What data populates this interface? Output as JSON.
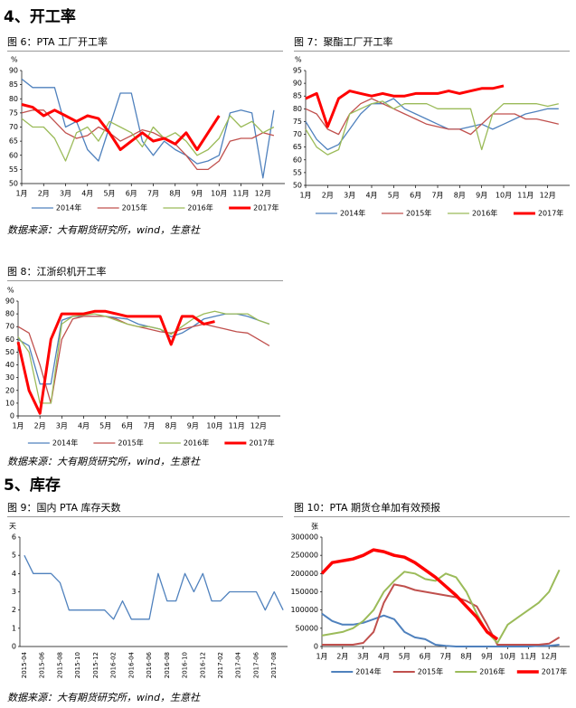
{
  "headings": [
    "4、开工率",
    "5、库存"
  ],
  "sources": [
    "数据来源：大有期货研究所，wind，生意社",
    "数据来源：大有期货研究所，wind，生意社",
    "数据来源：大有期货研究所，wind，生意社"
  ],
  "chart_data": [
    {
      "type": "line",
      "title": "图 6：PTA 工厂开工率",
      "unit": "%",
      "grid": false,
      "x": [
        1,
        1.5,
        2,
        2.5,
        3,
        3.5,
        4,
        4.5,
        5,
        5.5,
        6,
        6.5,
        7,
        7.5,
        8,
        8.5,
        9,
        9.5,
        10,
        10.5,
        11,
        11.5,
        12,
        12.5
      ],
      "xlim": [
        1,
        13
      ],
      "xticks": [
        {
          "value": 1,
          "label": "1月"
        },
        {
          "value": 2,
          "label": "2月"
        },
        {
          "value": 3,
          "label": "3月"
        },
        {
          "value": 4,
          "label": "4月"
        },
        {
          "value": 5,
          "label": "5月"
        },
        {
          "value": 6,
          "label": "6月"
        },
        {
          "value": 7,
          "label": "7月"
        },
        {
          "value": 8,
          "label": "8月"
        },
        {
          "value": 9,
          "label": "9月"
        },
        {
          "value": 10,
          "label": "10月"
        },
        {
          "value": 11,
          "label": "11月"
        },
        {
          "value": 12,
          "label": "12月"
        }
      ],
      "ylim": [
        50,
        90
      ],
      "yticks": [
        50,
        55,
        60,
        65,
        70,
        75,
        80,
        85,
        90
      ],
      "series": [
        {
          "name": "2014年",
          "color": "#4f81bd",
          "line_width": 1.3,
          "values": [
            87,
            84,
            84,
            84,
            70,
            72,
            62,
            58,
            70,
            82,
            82,
            65,
            60,
            65,
            62,
            60,
            57,
            58,
            60,
            75,
            76,
            75,
            52,
            76
          ]
        },
        {
          "name": "2015年",
          "color": "#c0504d",
          "line_width": 1.3,
          "values": [
            75,
            76,
            76,
            72,
            68,
            66,
            67,
            70,
            68,
            65,
            67,
            69,
            68,
            66,
            64,
            60,
            55,
            55,
            58,
            65,
            66,
            66,
            68,
            67
          ]
        },
        {
          "name": "2016年",
          "color": "#9bbb59",
          "line_width": 1.3,
          "values": [
            73,
            70,
            70,
            66,
            58,
            68,
            70,
            65,
            72,
            70,
            68,
            63,
            70,
            66,
            68,
            65,
            60,
            62,
            66,
            74,
            70,
            72,
            68,
            70
          ]
        },
        {
          "name": "2017年",
          "color": "#ff0000",
          "line_width": 3,
          "values": [
            78,
            77,
            74,
            76,
            74,
            72,
            74,
            73,
            68,
            62,
            65,
            68,
            65,
            66,
            64,
            68,
            62,
            68,
            74,
            null,
            null,
            null,
            null,
            null
          ]
        }
      ]
    },
    {
      "type": "line",
      "title": "图 7：聚酯工厂开工率",
      "unit": "%",
      "grid": false,
      "x": [
        1,
        1.5,
        2,
        2.5,
        3,
        3.5,
        4,
        4.5,
        5,
        5.5,
        6,
        6.5,
        7,
        7.5,
        8,
        8.5,
        9,
        9.5,
        10,
        10.5,
        11,
        11.5,
        12,
        12.5
      ],
      "xlim": [
        1,
        13
      ],
      "xticks": [
        {
          "value": 1,
          "label": "1月"
        },
        {
          "value": 2,
          "label": "2月"
        },
        {
          "value": 3,
          "label": "3月"
        },
        {
          "value": 4,
          "label": "4月"
        },
        {
          "value": 5,
          "label": "5月"
        },
        {
          "value": 6,
          "label": "6月"
        },
        {
          "value": 7,
          "label": "7月"
        },
        {
          "value": 8,
          "label": "8月"
        },
        {
          "value": 9,
          "label": "9月"
        },
        {
          "value": 10,
          "label": "10月"
        },
        {
          "value": 11,
          "label": "11月"
        },
        {
          "value": 12,
          "label": "12月"
        }
      ],
      "ylim": [
        50,
        95
      ],
      "yticks": [
        50,
        55,
        60,
        65,
        70,
        75,
        80,
        85,
        90,
        95
      ],
      "series": [
        {
          "name": "2014年",
          "color": "#4f81bd",
          "line_width": 1.3,
          "values": [
            75,
            68,
            64,
            66,
            72,
            78,
            82,
            82,
            84,
            80,
            78,
            76,
            74,
            72,
            72,
            73,
            74,
            72,
            74,
            76,
            78,
            79,
            80,
            80
          ]
        },
        {
          "name": "2015年",
          "color": "#c0504d",
          "line_width": 1.3,
          "values": [
            80,
            78,
            72,
            70,
            78,
            82,
            84,
            82,
            80,
            78,
            76,
            74,
            73,
            72,
            72,
            70,
            74,
            78,
            78,
            78,
            76,
            76,
            75,
            74
          ]
        },
        {
          "name": "2016年",
          "color": "#9bbb59",
          "line_width": 1.3,
          "values": [
            72,
            65,
            62,
            64,
            78,
            80,
            82,
            83,
            80,
            82,
            82,
            82,
            80,
            80,
            80,
            80,
            64,
            78,
            82,
            82,
            82,
            82,
            81,
            82
          ]
        },
        {
          "name": "2017年",
          "color": "#ff0000",
          "line_width": 3,
          "values": [
            84,
            86,
            73,
            84,
            87,
            86,
            85,
            86,
            85,
            85,
            86,
            86,
            86,
            87,
            86,
            87,
            88,
            88,
            89,
            null,
            null,
            null,
            null,
            null
          ]
        }
      ]
    },
    {
      "type": "line",
      "title": "图 8：江浙织机开工率",
      "unit": "%",
      "grid": false,
      "x": [
        1,
        1.5,
        2,
        2.5,
        3,
        3.5,
        4,
        4.5,
        5,
        5.5,
        6,
        6.5,
        7,
        7.5,
        8,
        8.5,
        9,
        9.5,
        10,
        10.5,
        11,
        11.5,
        12,
        12.5
      ],
      "xlim": [
        1,
        13
      ],
      "xticks": [
        {
          "value": 1,
          "label": "1月"
        },
        {
          "value": 2,
          "label": "2月"
        },
        {
          "value": 3,
          "label": "3月"
        },
        {
          "value": 4,
          "label": "4月"
        },
        {
          "value": 5,
          "label": "5月"
        },
        {
          "value": 6,
          "label": "6月"
        },
        {
          "value": 7,
          "label": "7月"
        },
        {
          "value": 8,
          "label": "8月"
        },
        {
          "value": 9,
          "label": "9月"
        },
        {
          "value": 10,
          "label": "10月"
        },
        {
          "value": 11,
          "label": "11月"
        },
        {
          "value": 12,
          "label": "12月"
        }
      ],
      "ylim": [
        0,
        90
      ],
      "yticks": [
        0,
        10,
        20,
        30,
        40,
        50,
        60,
        70,
        80,
        90
      ],
      "series": [
        {
          "name": "2014年",
          "color": "#4f81bd",
          "line_width": 1.3,
          "values": [
            60,
            55,
            25,
            25,
            75,
            78,
            78,
            78,
            78,
            77,
            76,
            72,
            70,
            68,
            62,
            65,
            70,
            76,
            78,
            80,
            80,
            78,
            75,
            72
          ]
        },
        {
          "name": "2015年",
          "color": "#c0504d",
          "line_width": 1.3,
          "values": [
            70,
            65,
            40,
            10,
            60,
            76,
            78,
            78,
            78,
            76,
            72,
            70,
            68,
            66,
            65,
            68,
            70,
            72,
            70,
            68,
            66,
            65,
            60,
            55
          ]
        },
        {
          "name": "2016年",
          "color": "#9bbb59",
          "line_width": 1.3,
          "values": [
            62,
            50,
            10,
            10,
            72,
            78,
            79,
            80,
            78,
            75,
            72,
            70,
            70,
            68,
            64,
            70,
            76,
            80,
            82,
            80,
            80,
            80,
            75,
            72
          ]
        },
        {
          "name": "2017年",
          "color": "#ff0000",
          "line_width": 3,
          "values": [
            58,
            20,
            2,
            60,
            80,
            80,
            80,
            82,
            82,
            80,
            78,
            78,
            78,
            78,
            56,
            78,
            78,
            72,
            74,
            null,
            null,
            null,
            null,
            null
          ]
        }
      ]
    },
    {
      "type": "line",
      "title": "图 9：国内 PTA 库存天数",
      "unit": "天",
      "grid": false,
      "categories": [
        "2015-04",
        null,
        "2015-06",
        null,
        "2015-08",
        null,
        "2015-10",
        null,
        "2015-12",
        null,
        "2016-02",
        null,
        "2016-04",
        null,
        "2016-06",
        null,
        "2016-08",
        null,
        "2016-10",
        null,
        "2016-12",
        null,
        "2017-02",
        null,
        "2017-04",
        null,
        "2017-06",
        null,
        "2017-08",
        null
      ],
      "ylim": [
        0,
        6
      ],
      "yticks": [
        0,
        1,
        2,
        3,
        4,
        5,
        6
      ],
      "series": [
        {
          "color": "#4f81bd",
          "line_width": 1.3,
          "values": [
            5,
            4,
            4,
            4,
            3.5,
            2,
            2,
            2,
            2,
            2,
            1.5,
            2.5,
            1.5,
            1.5,
            1.5,
            4,
            2.5,
            2.5,
            4,
            3,
            4,
            2.5,
            2.5,
            3,
            3,
            3,
            3,
            2,
            3,
            2
          ]
        }
      ]
    },
    {
      "type": "line",
      "title": "图 10：PTA 期货仓单加有效预报",
      "unit": "张",
      "grid": false,
      "x": [
        1,
        1.5,
        2,
        2.5,
        3,
        3.5,
        4,
        4.5,
        5,
        5.5,
        6,
        6.5,
        7,
        7.5,
        8,
        8.5,
        9,
        9.5,
        10,
        10.5,
        11,
        11.5,
        12,
        12.5
      ],
      "xlim": [
        1,
        13
      ],
      "xticks": [
        {
          "value": 1,
          "label": "1月"
        },
        {
          "value": 2,
          "label": "2月"
        },
        {
          "value": 3,
          "label": "3月"
        },
        {
          "value": 4,
          "label": "4月"
        },
        {
          "value": 5,
          "label": "5月"
        },
        {
          "value": 6,
          "label": "6月"
        },
        {
          "value": 7,
          "label": "7月"
        },
        {
          "value": 8,
          "label": "8月"
        },
        {
          "value": 9,
          "label": "9月"
        },
        {
          "value": 10,
          "label": "10月"
        },
        {
          "value": 11,
          "label": "11月"
        },
        {
          "value": 12,
          "label": "12月"
        }
      ],
      "ylim": [
        0,
        300000
      ],
      "yticks": [
        0,
        50000,
        100000,
        150000,
        200000,
        250000,
        300000
      ],
      "series": [
        {
          "name": "2014年",
          "color": "#4f81bd",
          "line_width": 2,
          "values": [
            90000,
            70000,
            60000,
            60000,
            65000,
            75000,
            85000,
            75000,
            40000,
            25000,
            20000,
            5000,
            2000,
            0,
            0,
            0,
            0,
            0,
            0,
            0,
            0,
            2000,
            2000,
            5000
          ]
        },
        {
          "name": "2015年",
          "color": "#c0504d",
          "line_width": 2,
          "values": [
            5000,
            5000,
            5000,
            5000,
            10000,
            40000,
            120000,
            170000,
            165000,
            155000,
            150000,
            145000,
            140000,
            135000,
            125000,
            110000,
            60000,
            5000,
            5000,
            5000,
            5000,
            5000,
            8000,
            25000
          ]
        },
        {
          "name": "2016年",
          "color": "#9bbb59",
          "line_width": 2,
          "values": [
            30000,
            35000,
            40000,
            50000,
            70000,
            100000,
            150000,
            180000,
            205000,
            200000,
            185000,
            180000,
            200000,
            190000,
            150000,
            90000,
            40000,
            10000,
            60000,
            80000,
            100000,
            120000,
            150000,
            210000
          ]
        },
        {
          "name": "2017年",
          "color": "#ff0000",
          "line_width": 3.5,
          "values": [
            200000,
            230000,
            235000,
            240000,
            250000,
            265000,
            260000,
            250000,
            245000,
            230000,
            210000,
            190000,
            165000,
            140000,
            110000,
            80000,
            40000,
            20000,
            null,
            null,
            null,
            null,
            null,
            null
          ]
        }
      ]
    }
  ]
}
